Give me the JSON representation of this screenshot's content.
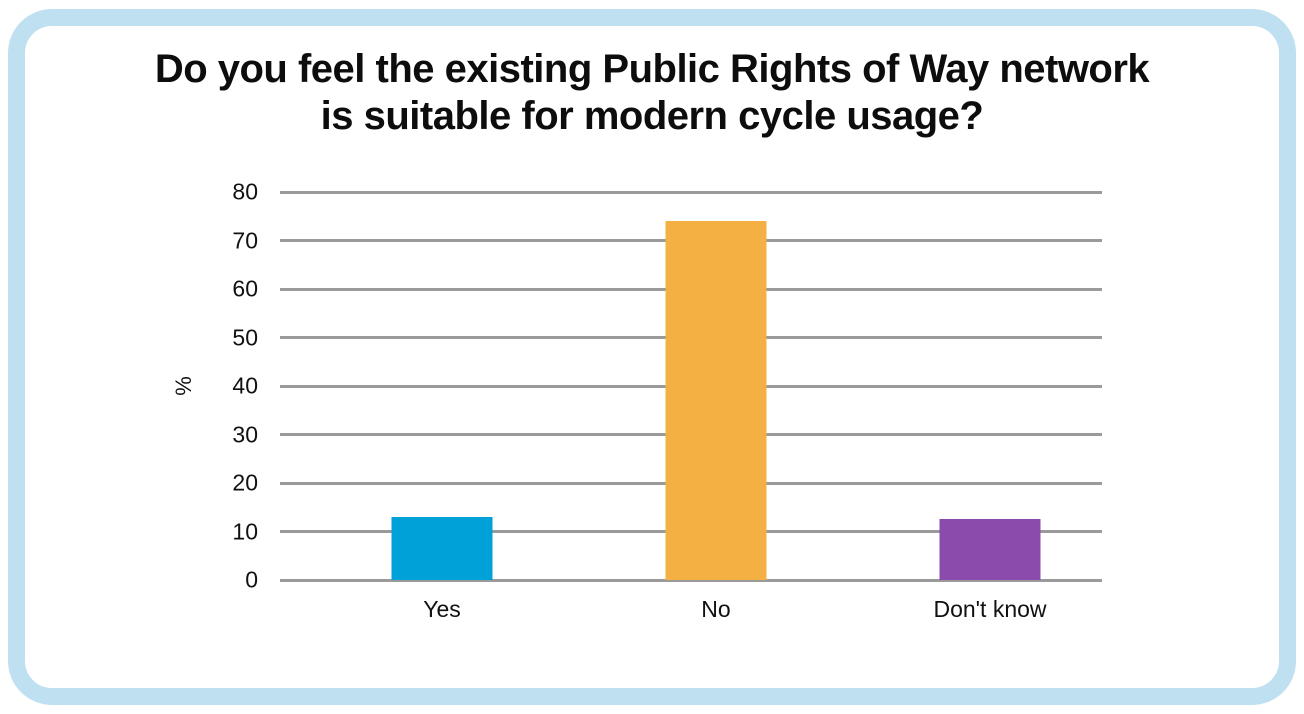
{
  "frame": {
    "border_color": "#bfe0f1",
    "background": "#ffffff"
  },
  "title_lines": [
    "Do you feel the existing Public Rights of Way network",
    "is suitable for modern cycle usage?"
  ],
  "chart_data": {
    "type": "bar",
    "title": "Do you feel the existing Public Rights of Way network is suitable for modern cycle usage?",
    "categories": [
      "Yes",
      "No",
      "Don't know"
    ],
    "values": [
      13,
      74,
      12.5
    ],
    "colors": [
      "#00a0d8",
      "#f5b043",
      "#8a4bad"
    ],
    "xlabel": "",
    "ylabel": "%",
    "ylim": [
      0,
      80
    ],
    "yticks": [
      0,
      10,
      20,
      30,
      40,
      50,
      60,
      70,
      80
    ],
    "grid": true,
    "gridline_color": "#9a9a9a",
    "legend": "none",
    "text_color": "#111111"
  }
}
